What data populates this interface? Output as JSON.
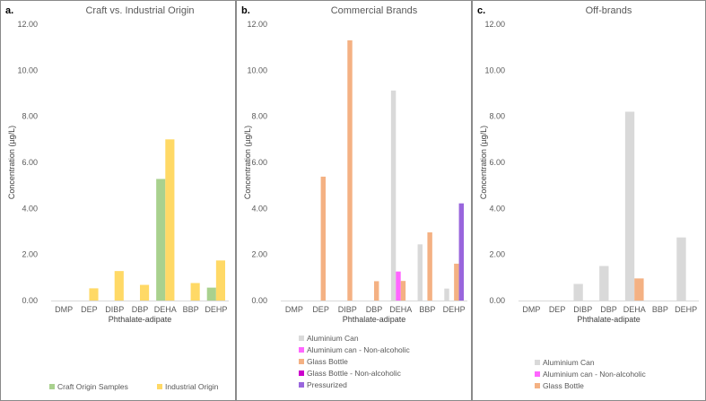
{
  "chart_data": [
    {
      "type": "bar",
      "panel_letter": "a.",
      "title": "Craft vs. Industrial Origin",
      "xlabel": "Phthalate-adipate",
      "ylabel": "Concentration (µg/L)",
      "ylim": [
        0,
        12
      ],
      "yticks": [
        "0.00",
        "2.00",
        "4.00",
        "6.00",
        "8.00",
        "10.00",
        "12.00"
      ],
      "categories": [
        "DMP",
        "DEP",
        "DIBP",
        "DBP",
        "DEHA",
        "BBP",
        "DEHP"
      ],
      "series": [
        {
          "name": "Craft Origin Samples",
          "color": "#a9d18e",
          "values": [
            0,
            0,
            0,
            0,
            5.28,
            0,
            0.56
          ]
        },
        {
          "name": "Industrial Origin",
          "color": "#ffd966",
          "values": [
            0,
            0.53,
            1.28,
            0.68,
            7.0,
            0.76,
            1.74
          ]
        }
      ],
      "legend_position": "bottom"
    },
    {
      "type": "bar",
      "panel_letter": "b.",
      "title": "Commercial Brands",
      "xlabel": "Phthalate-adipate",
      "ylabel": "Concentration (µg/L)",
      "ylim": [
        0,
        12
      ],
      "yticks": [
        "0.00",
        "2.00",
        "4.00",
        "6.00",
        "8.00",
        "10.00",
        "12.00"
      ],
      "categories": [
        "DMP",
        "DEP",
        "DIBP",
        "DBP",
        "DEHA",
        "BBP",
        "DEHP"
      ],
      "series": [
        {
          "name": "Aluminium Can",
          "color": "#d9d9d9",
          "values": [
            0,
            0,
            0,
            0,
            9.12,
            2.44,
            0.52
          ]
        },
        {
          "name": "Aluminium can - Non-alcoholic",
          "color": "#ff66ff",
          "values": [
            0,
            0,
            0,
            0,
            1.26,
            0,
            0
          ]
        },
        {
          "name": "Glass Bottle",
          "color": "#f4b183",
          "values": [
            0,
            5.38,
            11.3,
            0.84,
            0.85,
            2.96,
            1.6
          ]
        },
        {
          "name": "Glass Bottle - Non-alcoholic",
          "color": "#cc00cc",
          "values": [
            0,
            0,
            0,
            0,
            0,
            0,
            0
          ]
        },
        {
          "name": "Pressurized",
          "color": "#9966dd",
          "values": [
            0,
            0,
            0,
            0,
            0,
            0,
            4.22
          ]
        }
      ],
      "legend_position": "bottom"
    },
    {
      "type": "bar",
      "panel_letter": "c.",
      "title": "Off-brands",
      "xlabel": "Phthalate-adipate",
      "ylabel": "Concentration (µg/L)",
      "ylim": [
        0,
        12
      ],
      "yticks": [
        "0.00",
        "2.00",
        "4.00",
        "6.00",
        "8.00",
        "10.00",
        "12.00"
      ],
      "categories": [
        "DMP",
        "DEP",
        "DIBP",
        "DBP",
        "DEHA",
        "BBP",
        "DEHP"
      ],
      "series": [
        {
          "name": "Aluminium Can",
          "color": "#d9d9d9",
          "values": [
            0,
            0,
            0.72,
            1.5,
            8.2,
            0,
            2.74
          ]
        },
        {
          "name": "Aluminium can - Non-alcoholic",
          "color": "#ff66ff",
          "values": [
            0,
            0,
            0,
            0,
            0,
            0,
            0
          ]
        },
        {
          "name": "Glass Bottle",
          "color": "#f4b183",
          "values": [
            0,
            0,
            0,
            0,
            0.96,
            0,
            0
          ]
        }
      ],
      "legend_position": "bottom"
    }
  ]
}
